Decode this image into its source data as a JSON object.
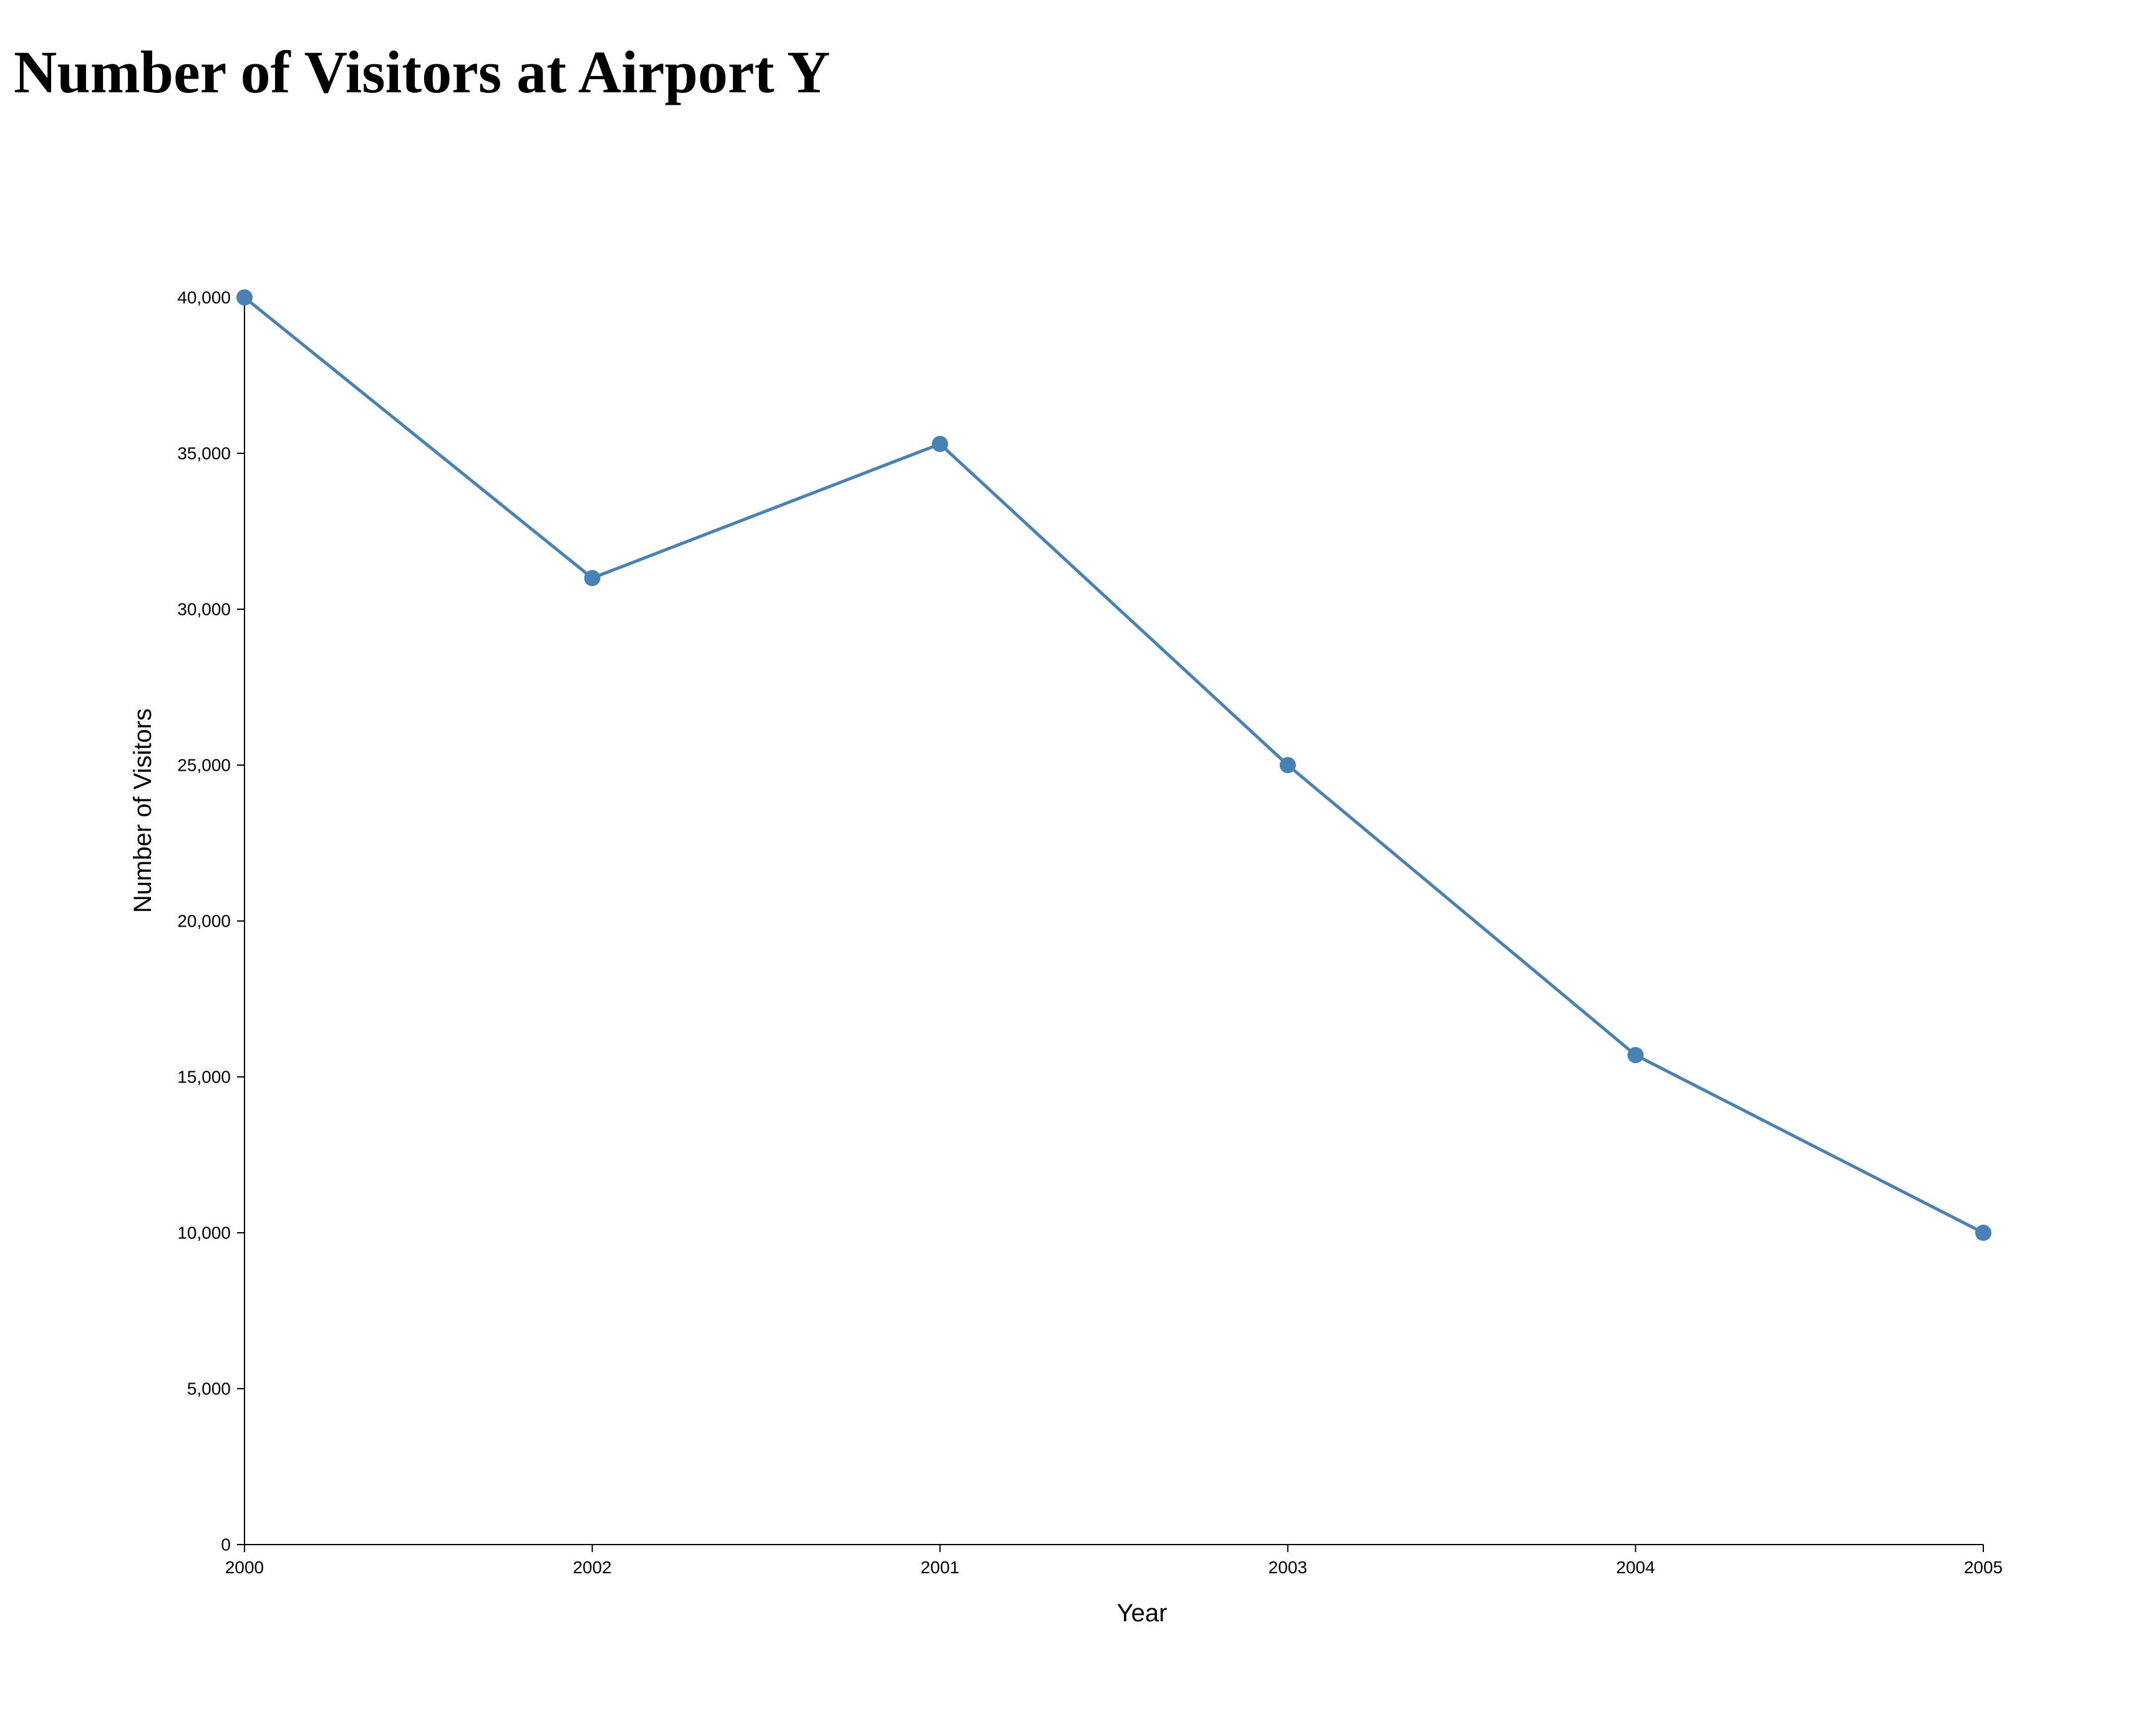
{
  "chart_data": {
    "type": "line",
    "title": "Number of Visitors at Airport Y",
    "xlabel": "Year",
    "ylabel": "Number of Visitors",
    "categories": [
      "2000",
      "2002",
      "2001",
      "2003",
      "2004",
      "2005"
    ],
    "series": [
      {
        "values": [
          40000,
          31000,
          35300,
          25000,
          15700,
          10000
        ]
      }
    ],
    "yticks": [
      0,
      5000,
      10000,
      15000,
      20000,
      25000,
      30000,
      35000,
      40000
    ],
    "ylim": [
      0,
      40000
    ],
    "grid": false,
    "legend": "none",
    "colors": {
      "line": "#4682b4",
      "point": "#4682b4",
      "axis": "#000000"
    }
  }
}
